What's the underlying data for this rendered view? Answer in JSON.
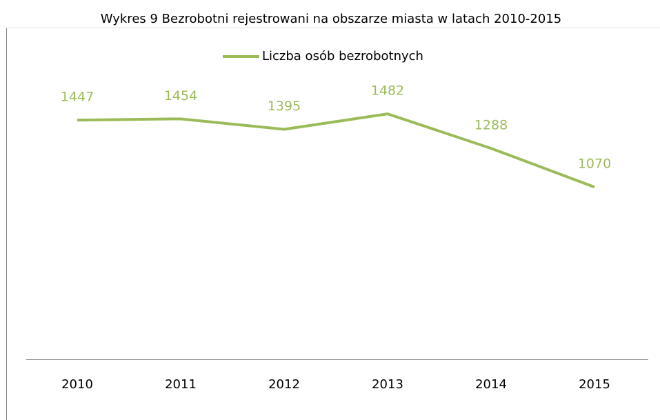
{
  "chart_data": {
    "type": "line",
    "title": "Wykres 9 Bezrobotni rejestrowani na obszarze miasta w latach 2010-2015",
    "categories": [
      "2010",
      "2011",
      "2012",
      "2013",
      "2014",
      "2015"
    ],
    "series": [
      {
        "name": "Liczba osób bezrobotnych",
        "color": "#9bbb59",
        "values": [
          1447,
          1454,
          1395,
          1482,
          1288,
          1070
        ]
      }
    ],
    "ylim": [
      100,
      1700
    ],
    "legend": "top"
  }
}
